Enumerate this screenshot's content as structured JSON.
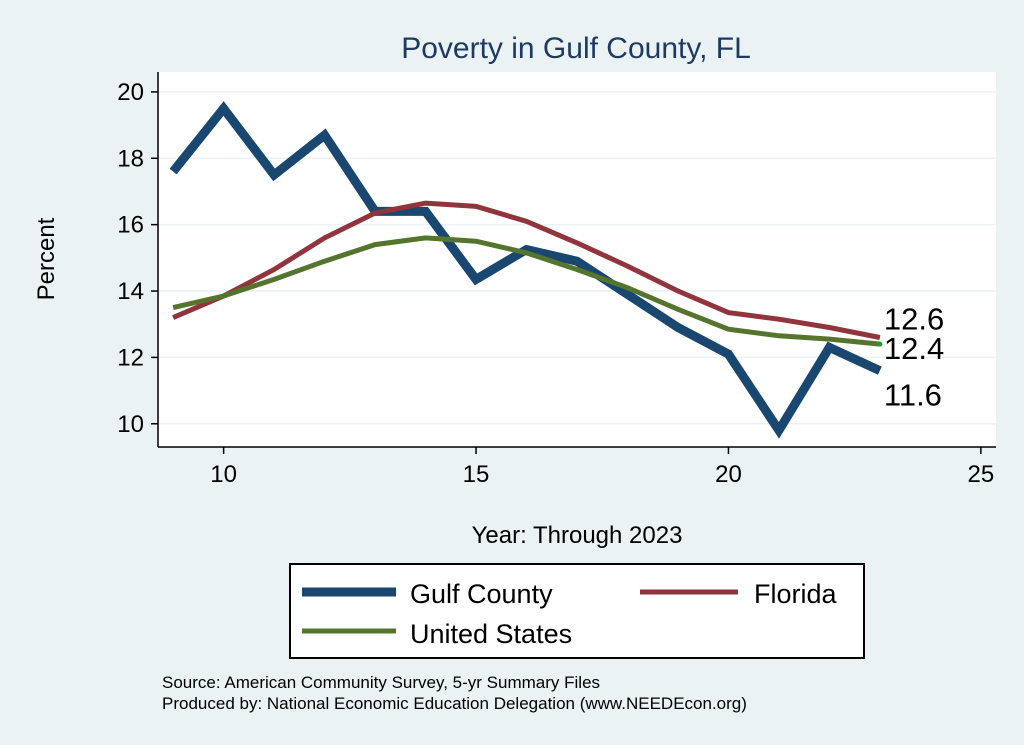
{
  "chart_data": {
    "type": "line",
    "title": "Poverty in Gulf County, FL",
    "xlabel": "Year: Through 2023",
    "ylabel": "Percent",
    "xlim": [
      8.7,
      25.3
    ],
    "ylim": [
      9.3,
      20.6
    ],
    "x_ticks": [
      10,
      15,
      20,
      25
    ],
    "y_ticks": [
      10,
      12,
      14,
      16,
      18,
      20
    ],
    "grid": true,
    "series": [
      {
        "name": "Gulf County",
        "color": "#1a476f",
        "x": [
          9,
          10,
          11,
          12,
          13,
          14,
          15,
          16,
          17,
          18,
          19,
          20,
          21,
          22,
          23
        ],
        "values": [
          17.6,
          19.5,
          17.5,
          18.7,
          16.4,
          16.4,
          14.35,
          15.25,
          14.9,
          13.9,
          12.9,
          12.1,
          9.8,
          12.3,
          11.6
        ]
      },
      {
        "name": "Florida",
        "color": "#90353b",
        "x": [
          9,
          10,
          11,
          12,
          13,
          14,
          15,
          16,
          17,
          18,
          19,
          20,
          21,
          22,
          23
        ],
        "values": [
          13.2,
          13.85,
          14.65,
          15.6,
          16.35,
          16.65,
          16.55,
          16.1,
          15.45,
          14.75,
          14.0,
          13.35,
          13.15,
          12.9,
          12.6
        ]
      },
      {
        "name": "United States",
        "color": "#55752f",
        "x": [
          9,
          10,
          11,
          12,
          13,
          14,
          15,
          16,
          17,
          18,
          19,
          20,
          21,
          22,
          23
        ],
        "values": [
          13.5,
          13.85,
          14.35,
          14.9,
          15.4,
          15.6,
          15.5,
          15.15,
          14.65,
          14.1,
          13.45,
          12.85,
          12.65,
          12.55,
          12.4
        ]
      }
    ],
    "end_labels": [
      {
        "series": "Florida",
        "text": "12.6"
      },
      {
        "series": "United States",
        "text": "12.4"
      },
      {
        "series": "Gulf County",
        "text": "11.6"
      }
    ],
    "legend": {
      "position": "bottom",
      "entries": [
        "Gulf County",
        "Florida",
        "United States"
      ]
    },
    "note_lines": [
      "Source: American Community Survey, 5-yr Summary Files",
      "Produced by: National Economic Education Delegation (www.NEEDEcon.org)"
    ]
  }
}
